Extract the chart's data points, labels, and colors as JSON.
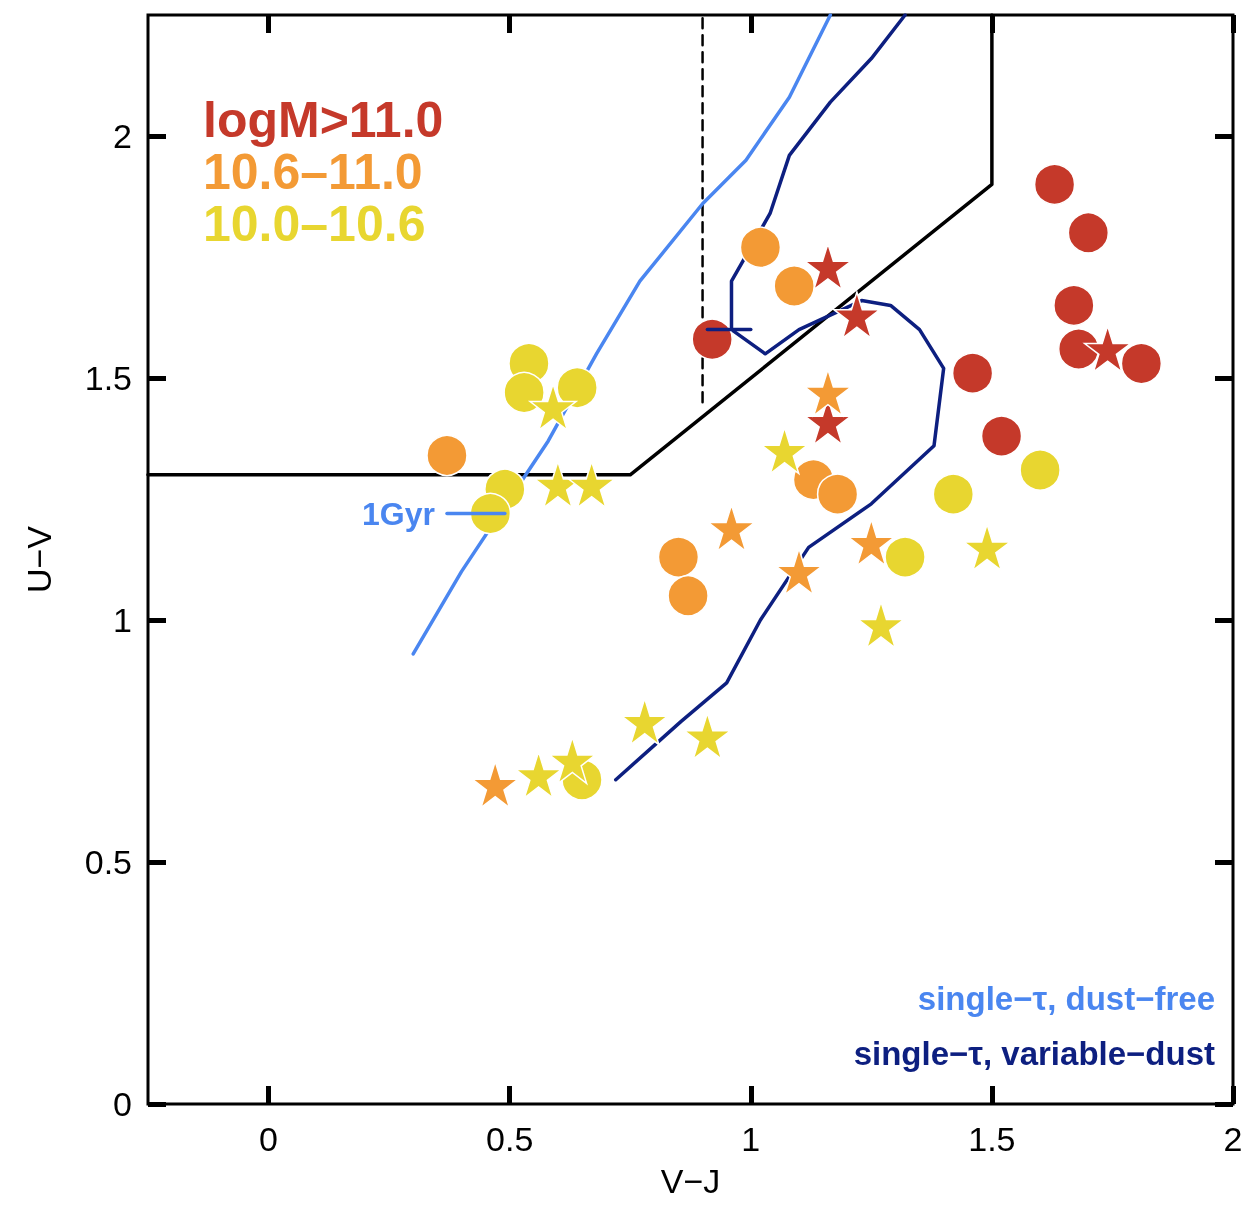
{
  "chart_data": {
    "type": "scatter",
    "xlabel": "V−J",
    "ylabel": "U−V",
    "xlim": [
      -0.25,
      2
    ],
    "xticks": [
      0,
      0.5,
      1,
      1.5,
      2
    ],
    "ylim": [
      0,
      2.25
    ],
    "yticks": [
      0,
      0.5,
      1,
      1.5,
      2
    ],
    "grid": false,
    "legend": "top left",
    "annotations": [
      {
        "text": "1Gyr",
        "x": 0.37,
        "y": 1.22
      },
      "single−τ, dust−free",
      "single−τ, variable−dust"
    ],
    "series": [
      {
        "type": "line",
        "marker": "none",
        "line_style": "solid",
        "color": "#000000",
        "x": [
          -0.25,
          0.75,
          1.5,
          1.5
        ],
        "values": [
          1.3,
          1.3,
          1.9,
          2.25
        ]
      },
      {
        "type": "line",
        "marker": "none",
        "line_style": "dashed",
        "color": "#000000",
        "x": [
          0.9,
          0.9
        ],
        "values": [
          1.45,
          2.25
        ]
      },
      {
        "type": "line",
        "marker": "none",
        "line_style": "solid",
        "color": "#4a86f0",
        "x": [
          0.3,
          0.4,
          0.58,
          0.68,
          0.77,
          0.9,
          0.99,
          1.08,
          1.165
        ],
        "values": [
          0.93,
          1.1,
          1.37,
          1.55,
          1.7,
          1.86,
          1.95,
          2.08,
          2.25
        ]
      },
      {
        "type": "line",
        "marker": "none",
        "line_style": "solid",
        "color": "#0d1f80",
        "x": [
          0.72,
          0.855,
          0.95,
          1.02,
          1.12,
          1.25,
          1.38,
          1.4,
          1.35,
          1.29,
          1.23,
          1.1,
          1.03,
          0.96,
          0.96,
          1.04,
          1.08,
          1.165,
          1.25,
          1.32
        ],
        "values": [
          0.67,
          0.79,
          0.87,
          1.0,
          1.15,
          1.24,
          1.36,
          1.52,
          1.6,
          1.65,
          1.66,
          1.6,
          1.55,
          1.6,
          1.7,
          1.84,
          1.96,
          2.07,
          2.16,
          2.25
        ]
      },
      {
        "type": "line",
        "marker": "none",
        "line_style": "solid",
        "color": "#4a86f0",
        "x": [
          0.37,
          0.49
        ],
        "values": [
          1.22,
          1.22
        ]
      },
      {
        "type": "line",
        "marker": "none",
        "line_style": "solid",
        "color": "#0d1f80",
        "x": [
          0.91,
          1.0
        ],
        "values": [
          1.6,
          1.6
        ]
      },
      {
        "name": "logM>11.0",
        "marker": "circle",
        "color": "#c5392a",
        "x": [
          1.63,
          1.7,
          1.67,
          1.68,
          1.81,
          1.46,
          1.52,
          0.92
        ],
        "values": [
          1.9,
          1.8,
          1.65,
          1.56,
          1.53,
          1.51,
          1.38,
          1.58
        ]
      },
      {
        "marker": "star",
        "color": "#c5392a",
        "x": [
          1.16,
          1.22,
          1.74,
          1.16
        ],
        "values": [
          1.73,
          1.63,
          1.56,
          1.41
        ]
      },
      {
        "name": "10.6–11.0",
        "marker": "circle",
        "color": "#f39a35",
        "x": [
          0.37,
          1.02,
          1.09,
          1.13,
          1.18,
          0.85,
          0.87
        ],
        "values": [
          1.34,
          1.77,
          1.69,
          1.29,
          1.26,
          1.13,
          1.05
        ]
      },
      {
        "marker": "star",
        "color": "#f39a35",
        "x": [
          1.16,
          0.96,
          1.1,
          1.25,
          0.47
        ],
        "values": [
          1.47,
          1.19,
          1.1,
          1.16,
          0.66
        ]
      },
      {
        "name": "10.0–10.6",
        "marker": "circle",
        "color": "#e8d630",
        "x": [
          0.54,
          0.53,
          0.64,
          0.49,
          0.46,
          1.42,
          1.6,
          1.32,
          0.65
        ],
        "values": [
          1.53,
          1.47,
          1.48,
          1.27,
          1.22,
          1.26,
          1.31,
          1.13,
          0.67
        ]
      },
      {
        "marker": "star",
        "color": "#e8d630",
        "x": [
          0.59,
          0.6,
          0.67,
          1.07,
          1.49,
          1.27,
          0.78,
          0.91,
          0.56,
          0.63
        ],
        "values": [
          1.44,
          1.28,
          1.28,
          1.35,
          1.15,
          0.99,
          0.79,
          0.76,
          0.68,
          0.71
        ]
      }
    ]
  }
}
